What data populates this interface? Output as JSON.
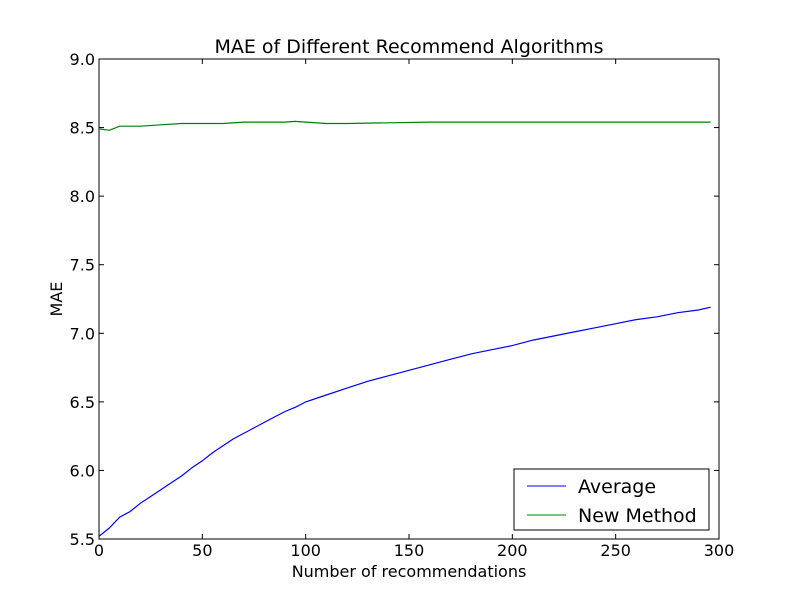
{
  "chart_data": {
    "type": "line",
    "title": "MAE of Different Recommend Algorithms",
    "xlabel": "Number of recommendations",
    "ylabel": "MAE",
    "xlim": [
      0,
      300
    ],
    "ylim": [
      5.5,
      9.0
    ],
    "xticks": [
      0,
      50,
      100,
      150,
      200,
      250,
      300
    ],
    "xtick_labels": [
      "0",
      "50",
      "100",
      "150",
      "200",
      "250",
      "300"
    ],
    "yticks": [
      5.5,
      6.0,
      6.5,
      7.0,
      7.5,
      8.0,
      8.5,
      9.0
    ],
    "ytick_labels": [
      "5.5",
      "6.0",
      "6.5",
      "7.0",
      "7.5",
      "8.0",
      "8.5",
      "9.0"
    ],
    "grid": false,
    "legend_position": "bottom-right",
    "series": [
      {
        "name": "Average",
        "color": "#0000ff",
        "x": [
          0,
          5,
          10,
          15,
          20,
          25,
          30,
          35,
          40,
          45,
          50,
          55,
          60,
          65,
          70,
          75,
          80,
          85,
          90,
          95,
          100,
          110,
          120,
          130,
          140,
          150,
          160,
          170,
          180,
          190,
          200,
          210,
          220,
          230,
          240,
          250,
          260,
          270,
          280,
          290,
          296
        ],
        "y": [
          5.52,
          5.58,
          5.66,
          5.7,
          5.76,
          5.81,
          5.86,
          5.91,
          5.96,
          6.02,
          6.07,
          6.13,
          6.18,
          6.23,
          6.27,
          6.31,
          6.35,
          6.39,
          6.43,
          6.46,
          6.5,
          6.55,
          6.6,
          6.65,
          6.69,
          6.73,
          6.77,
          6.81,
          6.85,
          6.88,
          6.91,
          6.95,
          6.98,
          7.01,
          7.04,
          7.07,
          7.1,
          7.12,
          7.15,
          7.17,
          7.19
        ]
      },
      {
        "name": "New Method",
        "color": "#008000",
        "x": [
          0,
          5,
          10,
          15,
          20,
          30,
          40,
          50,
          60,
          70,
          80,
          90,
          95,
          100,
          110,
          120,
          140,
          160,
          180,
          200,
          220,
          240,
          260,
          280,
          296
        ],
        "y": [
          8.49,
          8.48,
          8.51,
          8.51,
          8.51,
          8.52,
          8.53,
          8.53,
          8.53,
          8.54,
          8.54,
          8.54,
          8.545,
          8.54,
          8.53,
          8.53,
          8.535,
          8.54,
          8.54,
          8.54,
          8.54,
          8.54,
          8.54,
          8.54,
          8.54
        ]
      }
    ]
  }
}
